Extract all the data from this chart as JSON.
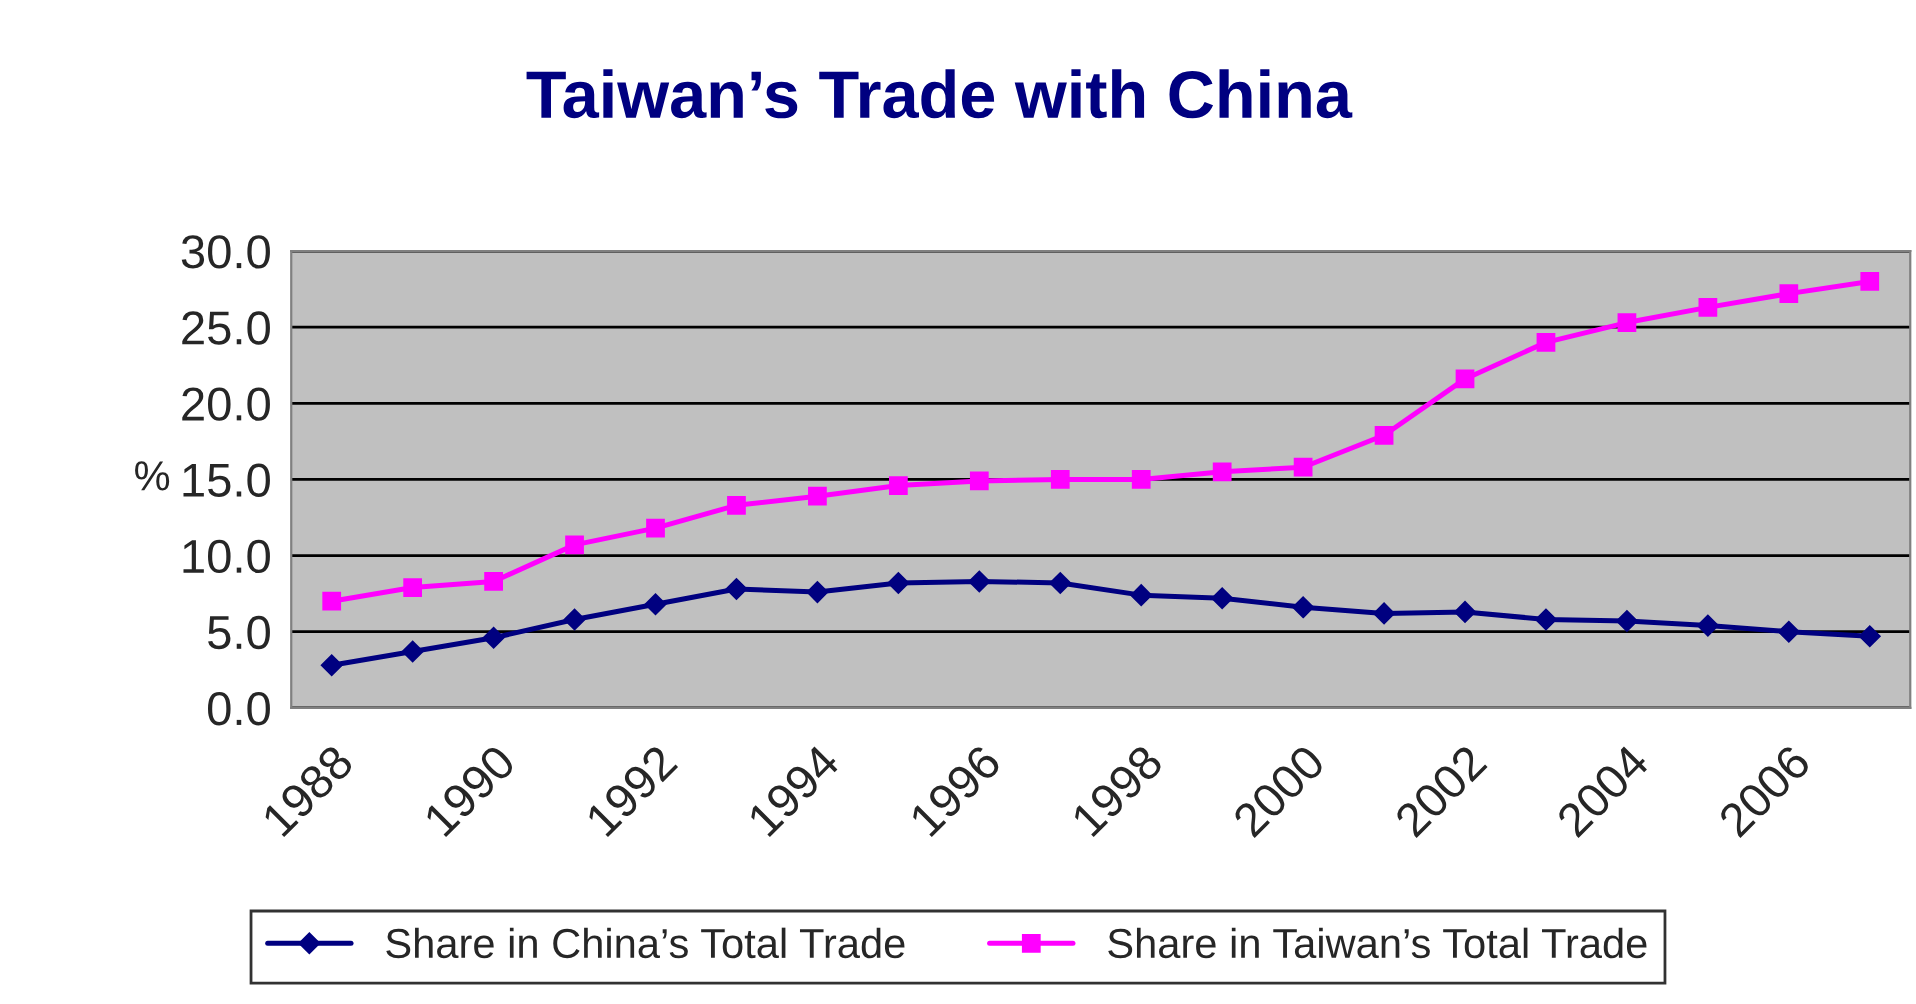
{
  "chart_data": {
    "type": "line",
    "title": "Taiwan’s Trade with China",
    "ylabel": "%",
    "categories": [
      "1988",
      null,
      "1990",
      null,
      "1992",
      null,
      "1994",
      null,
      "1996",
      null,
      "1998",
      null,
      "2000",
      null,
      "2002",
      null,
      "2004",
      null,
      "2006",
      null
    ],
    "series": [
      {
        "name": "Share in China’s Total Trade",
        "color": "#000080",
        "marker": "diamond",
        "values": [
          2.8,
          3.7,
          4.6,
          5.8,
          6.8,
          7.8,
          7.6,
          8.2,
          8.3,
          8.2,
          7.4,
          7.2,
          6.6,
          6.2,
          6.3,
          5.8,
          5.7,
          5.4,
          5.0,
          4.7
        ]
      },
      {
        "name": "Share in Taiwan’s Total Trade",
        "color": "#ff00ff",
        "marker": "square",
        "values": [
          7.0,
          7.9,
          8.3,
          10.7,
          11.8,
          13.3,
          13.9,
          14.6,
          14.9,
          15.0,
          15.0,
          15.5,
          15.8,
          17.9,
          21.6,
          24.0,
          25.3,
          26.3,
          27.2,
          28.0
        ]
      }
    ],
    "ylim": [
      0,
      30
    ],
    "yticks": [
      {
        "value": 0,
        "label": "0.0"
      },
      {
        "value": 5,
        "label": "5.0"
      },
      {
        "value": 10,
        "label": "10.0"
      },
      {
        "value": 15,
        "label": "15.0"
      },
      {
        "value": 20,
        "label": "20.0"
      },
      {
        "value": 25,
        "label": "25.0"
      },
      {
        "value": 30,
        "label": "30.0"
      }
    ],
    "grid": "y",
    "legend": "bottom",
    "line_style": "solid"
  }
}
